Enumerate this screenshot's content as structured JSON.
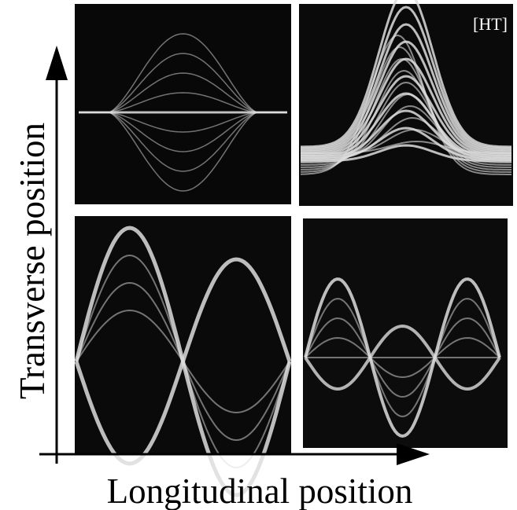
{
  "label": "[HT]",
  "axes": {
    "y_label": "Transverse position",
    "x_label": "Longitudinal position"
  }
}
